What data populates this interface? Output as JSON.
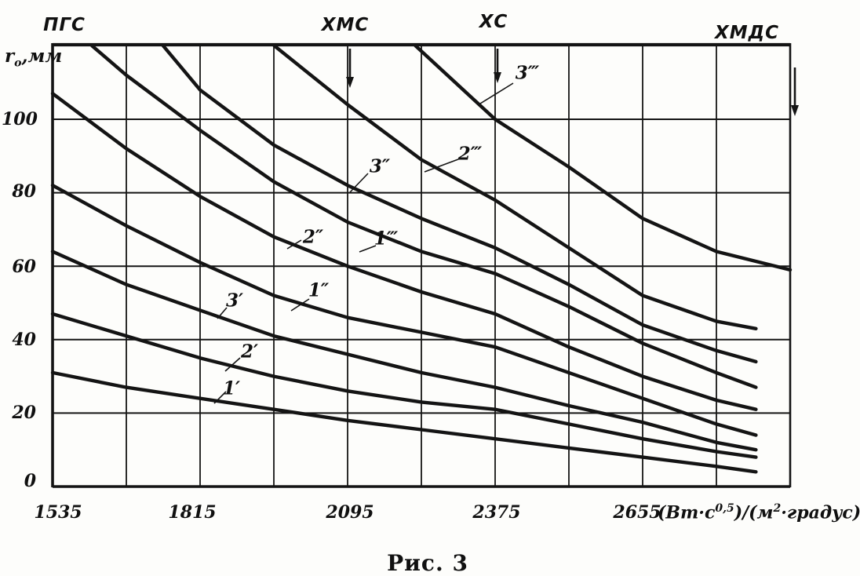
{
  "figure_caption": "Рис. 3",
  "y_axis": {
    "title_main": "r",
    "title_sub": "o",
    "title_rest": ",мм",
    "ticks": [
      "100",
      "80",
      "60",
      "40",
      "20",
      "0"
    ]
  },
  "x_axis": {
    "ticks": [
      "1535",
      "1815",
      "2095",
      "2375",
      "2655"
    ],
    "unit_p1": "(Вт·с",
    "unit_sup1": "0,5",
    "unit_p2": ")/(м",
    "unit_sup2": "2",
    "unit_p3": "·градус)"
  },
  "top_markers": [
    {
      "label": "ПГС",
      "x": 1535,
      "arrow": false
    },
    {
      "label": "ХМС",
      "x": 2095,
      "arrow": true
    },
    {
      "label": "ХС",
      "x": 2375,
      "arrow": true
    },
    {
      "label": "ХМДС",
      "x": 2935,
      "arrow": true
    }
  ],
  "chart_data": {
    "type": "line",
    "title": "Рис. 3",
    "xlabel": "(Вт·с^0,5)/(м^2·градус)",
    "ylabel": "r_o, мм",
    "x_range": [
      1535,
      2935
    ],
    "y_range": [
      0,
      120
    ],
    "x_grid_step": 140,
    "y_grid_step": 20,
    "x_tick_values": [
      1535,
      1815,
      2095,
      2375,
      2655
    ],
    "y_tick_values": [
      0,
      20,
      40,
      60,
      80,
      100
    ],
    "grid": true,
    "legend_position": "labels-on-curves",
    "annotations": [
      "ПГС marks x = 1535 (left edge, no arrow)",
      "ХМС arrow marks x = 2095",
      "ХС arrow marks x = 2375",
      "ХМДС arrow marks x = 2935 (right edge)"
    ],
    "values_note": "Point values estimated from scanned hand-drawn curves (r_o, мм vs thermal activity)",
    "series": [
      {
        "label": "1′",
        "points": [
          [
            1535,
            31
          ],
          [
            1675,
            27
          ],
          [
            1815,
            24
          ],
          [
            1955,
            21
          ],
          [
            2095,
            18
          ],
          [
            2235,
            15.5
          ],
          [
            2375,
            13
          ],
          [
            2515,
            10.5
          ],
          [
            2655,
            8
          ],
          [
            2795,
            5.5
          ],
          [
            2870,
            4
          ]
        ]
      },
      {
        "label": "2′",
        "points": [
          [
            1535,
            47
          ],
          [
            1675,
            41
          ],
          [
            1815,
            35
          ],
          [
            1955,
            30
          ],
          [
            2095,
            26
          ],
          [
            2235,
            23
          ],
          [
            2375,
            21
          ],
          [
            2515,
            17
          ],
          [
            2655,
            13
          ],
          [
            2795,
            9.5
          ],
          [
            2870,
            8
          ]
        ]
      },
      {
        "label": "3′",
        "points": [
          [
            1535,
            64
          ],
          [
            1675,
            55
          ],
          [
            1815,
            48
          ],
          [
            1955,
            41
          ],
          [
            2095,
            36
          ],
          [
            2235,
            31
          ],
          [
            2375,
            27
          ],
          [
            2515,
            22
          ],
          [
            2655,
            17.5
          ],
          [
            2795,
            12
          ],
          [
            2870,
            10
          ]
        ]
      },
      {
        "label": "1″",
        "points": [
          [
            1535,
            82
          ],
          [
            1675,
            71
          ],
          [
            1815,
            61
          ],
          [
            1955,
            52
          ],
          [
            2095,
            46
          ],
          [
            2235,
            42
          ],
          [
            2375,
            38
          ],
          [
            2515,
            31
          ],
          [
            2655,
            24
          ],
          [
            2795,
            17
          ],
          [
            2870,
            14
          ]
        ]
      },
      {
        "label": "2″",
        "points": [
          [
            1535,
            107
          ],
          [
            1675,
            92
          ],
          [
            1815,
            79
          ],
          [
            1955,
            68
          ],
          [
            2095,
            60
          ],
          [
            2235,
            53
          ],
          [
            2375,
            47
          ],
          [
            2515,
            38
          ],
          [
            2655,
            30
          ],
          [
            2795,
            23.5
          ],
          [
            2870,
            21
          ]
        ]
      },
      {
        "label": "3″",
        "points": [
          [
            1745,
            120
          ],
          [
            1815,
            108
          ],
          [
            1955,
            93
          ],
          [
            2095,
            82
          ],
          [
            2235,
            73
          ],
          [
            2375,
            65
          ],
          [
            2515,
            55
          ],
          [
            2655,
            44
          ],
          [
            2795,
            37
          ],
          [
            2870,
            34
          ]
        ]
      },
      {
        "label": "1‴",
        "points": [
          [
            1610,
            120
          ],
          [
            1675,
            112
          ],
          [
            1815,
            97
          ],
          [
            1955,
            83
          ],
          [
            2095,
            72
          ],
          [
            2235,
            64
          ],
          [
            2375,
            58
          ],
          [
            2515,
            49
          ],
          [
            2655,
            39
          ],
          [
            2795,
            31
          ],
          [
            2870,
            27
          ]
        ]
      },
      {
        "label": "2‴",
        "points": [
          [
            1956,
            120
          ],
          [
            2095,
            104
          ],
          [
            2235,
            89
          ],
          [
            2375,
            78
          ],
          [
            2515,
            65
          ],
          [
            2655,
            52
          ],
          [
            2795,
            45
          ],
          [
            2870,
            43
          ]
        ]
      },
      {
        "label": "3‴",
        "points": [
          [
            2224,
            120
          ],
          [
            2375,
            100
          ],
          [
            2515,
            87
          ],
          [
            2655,
            73
          ],
          [
            2795,
            64
          ],
          [
            2935,
            59
          ]
        ]
      }
    ]
  }
}
